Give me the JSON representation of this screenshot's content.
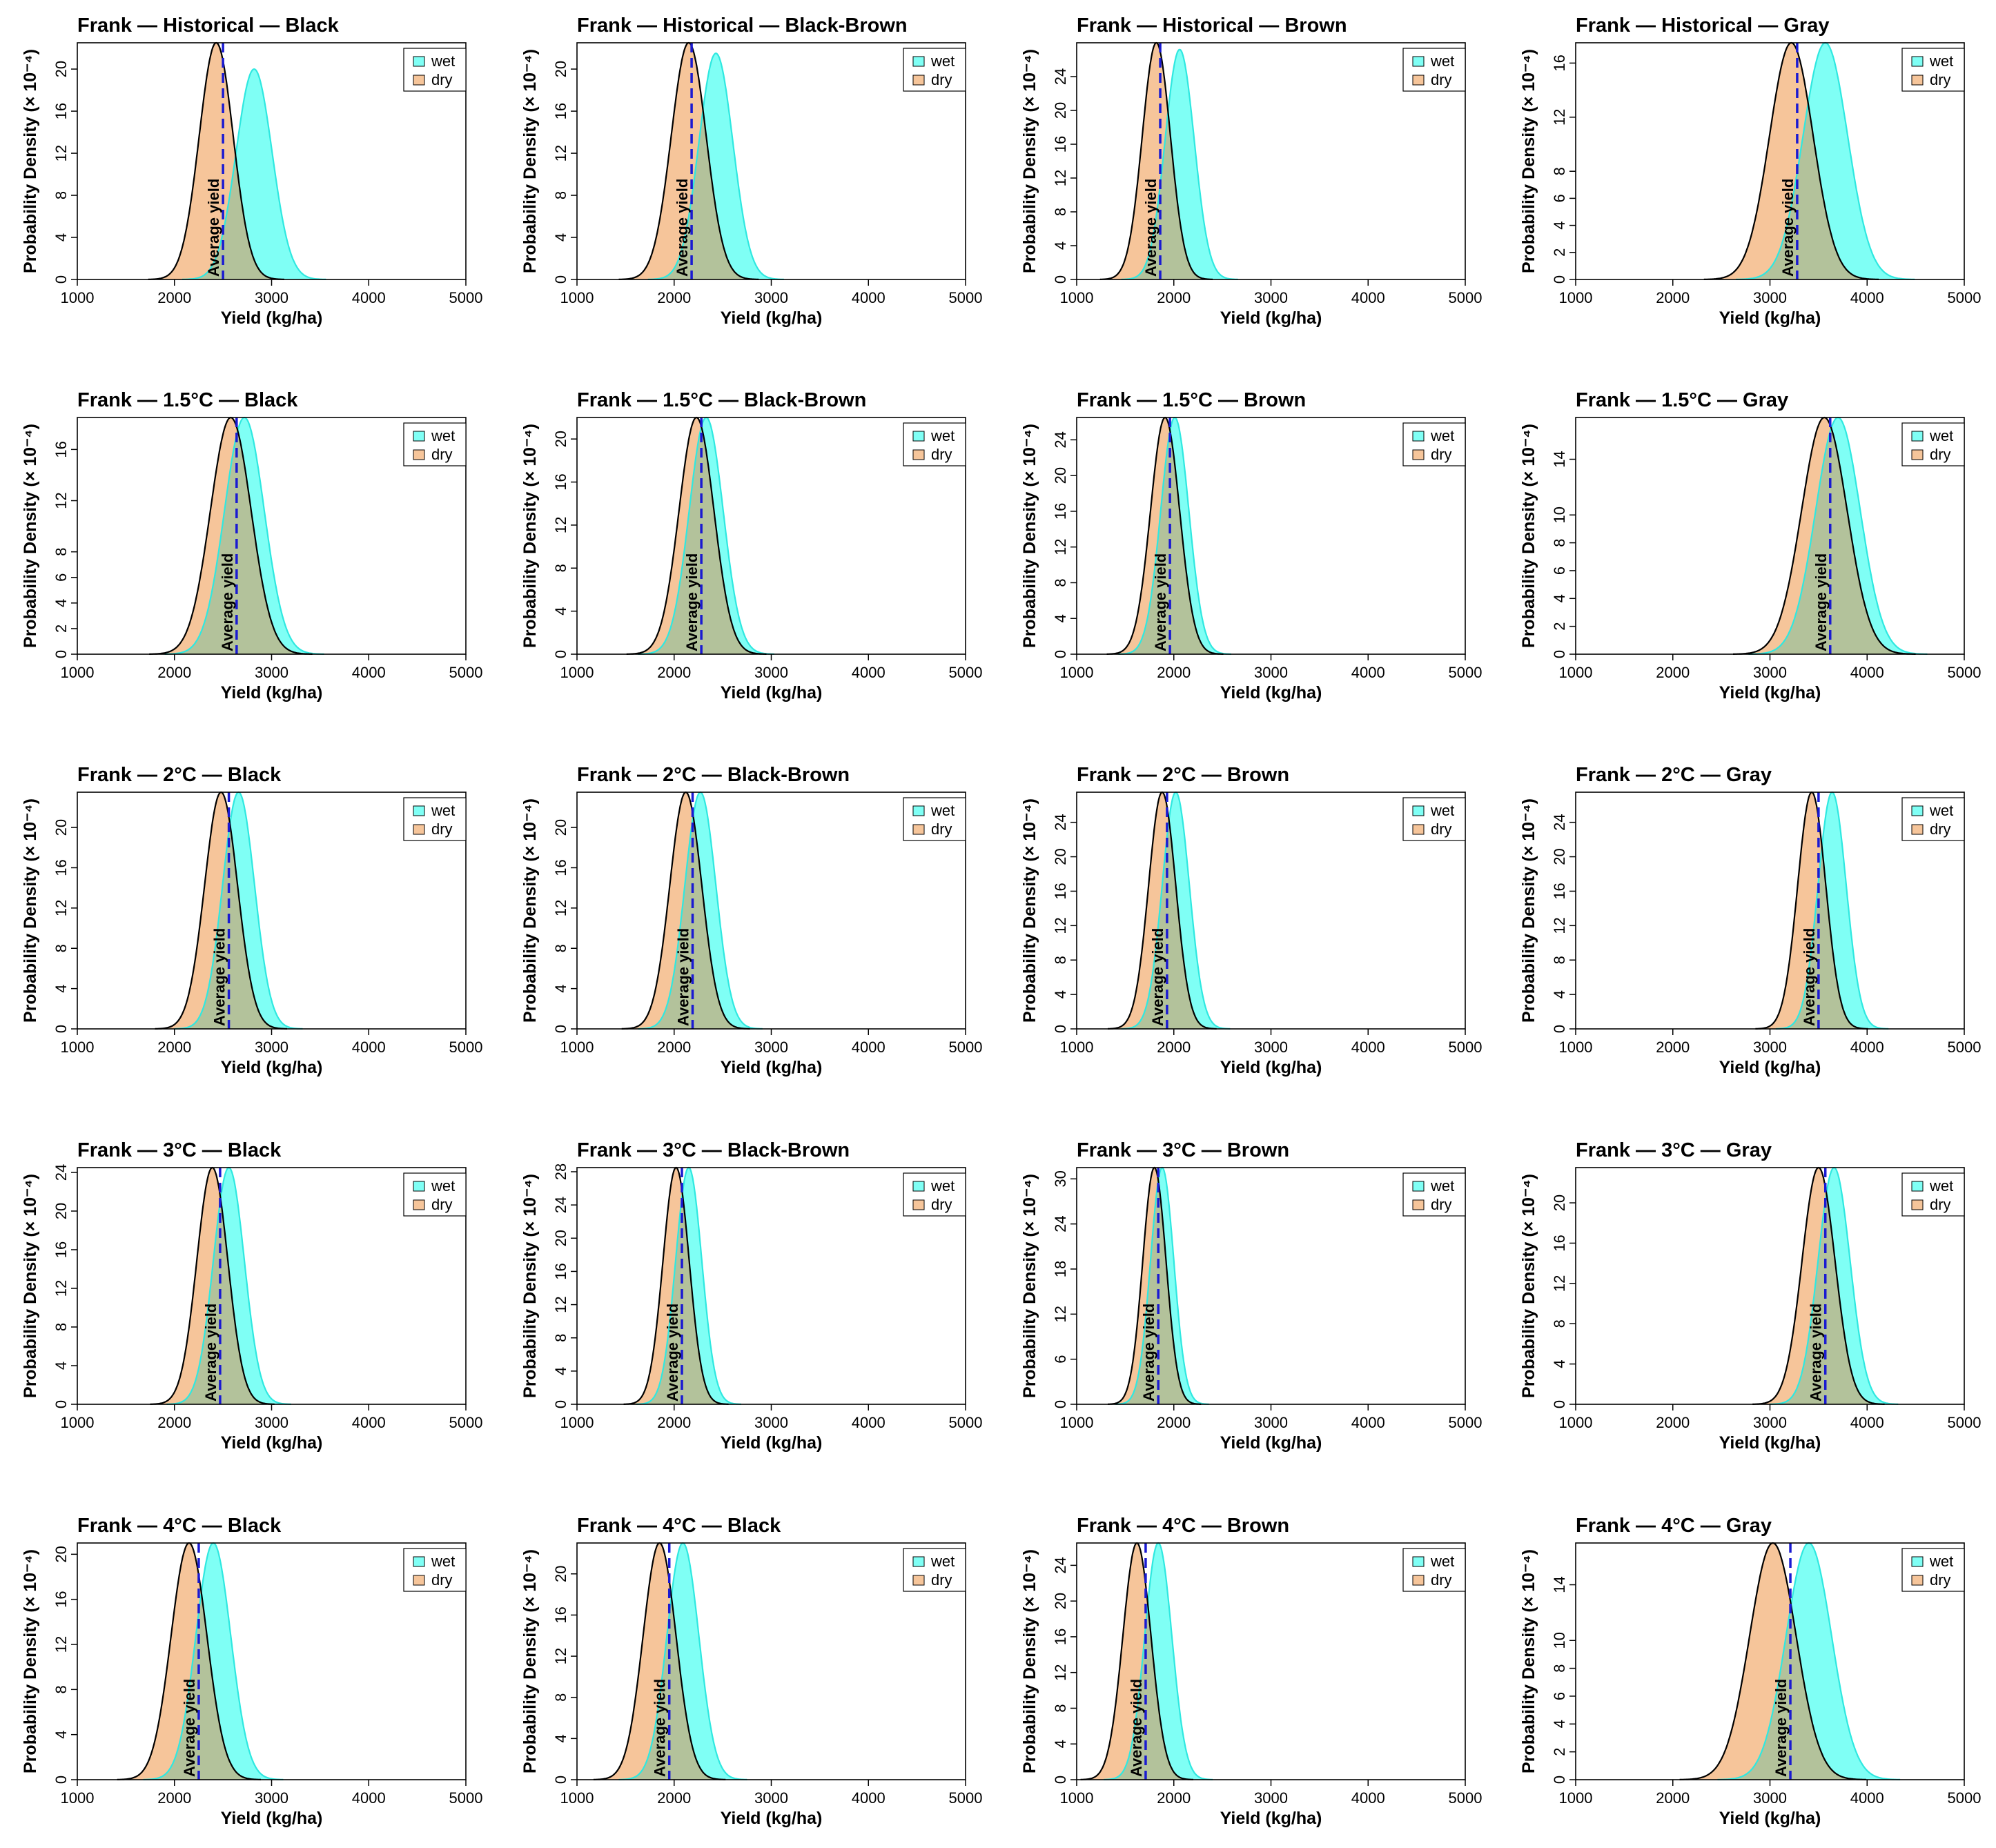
{
  "figure": {
    "ylabel": "Probability Density (× 10⁻⁴)"
  },
  "colors": {
    "wet_fill": "#7FFFF5",
    "wet_line": "#2FE8E0",
    "dry_fill": "#F6C59A",
    "overlap_fill": "#B3C29B",
    "dry_line": "#000000",
    "avg_line": "#1A1AD2"
  },
  "chart_data": [
    {
      "type": "area",
      "title": "Frank — Historical — Black",
      "xlabel": "Yield (kg/ha)",
      "ylabel": "Probability Density (× 10⁻⁴)",
      "xlim": [
        1000,
        5000
      ],
      "x_ticks": [
        "1000",
        "2000",
        "3000",
        "4000",
        "5000"
      ],
      "ylim": [
        0,
        22.5
      ],
      "y_ticks": [
        0,
        4,
        8,
        12,
        16,
        20
      ],
      "legend": [
        "wet",
        "dry"
      ],
      "series": [
        {
          "name": "wet",
          "mean": 2820,
          "sd": 185,
          "peak": 20.0
        },
        {
          "name": "dry",
          "mean": 2430,
          "sd": 175,
          "peak": 22.5
        }
      ],
      "average_yield": 2500,
      "avg_label": "Average yield"
    },
    {
      "type": "area",
      "title": "Frank — Historical — Black-Brown",
      "xlabel": "Yield (kg/ha)",
      "ylabel": "Probability Density (× 10⁻⁴)",
      "xlim": [
        1000,
        5000
      ],
      "x_ticks": [
        "1000",
        "2000",
        "3000",
        "4000",
        "5000"
      ],
      "ylim": [
        0,
        22.5
      ],
      "y_ticks": [
        0,
        4,
        8,
        12,
        16,
        20
      ],
      "legend": [
        "wet",
        "dry"
      ],
      "series": [
        {
          "name": "wet",
          "mean": 2430,
          "sd": 175,
          "peak": 21.5
        },
        {
          "name": "dry",
          "mean": 2150,
          "sd": 180,
          "peak": 22.5
        }
      ],
      "average_yield": 2180,
      "avg_label": "Average yield"
    },
    {
      "type": "area",
      "title": "Frank — Historical — Brown",
      "xlabel": "Yield (kg/ha)",
      "ylabel": "Probability Density (× 10⁻⁴)",
      "xlim": [
        1000,
        5000
      ],
      "x_ticks": [
        "1000",
        "2000",
        "3000",
        "4000",
        "5000"
      ],
      "ylim": [
        0,
        28
      ],
      "y_ticks": [
        0,
        4,
        8,
        12,
        16,
        20,
        24
      ],
      "legend": [
        "wet",
        "dry"
      ],
      "series": [
        {
          "name": "wet",
          "mean": 2060,
          "sd": 150,
          "peak": 27.2
        },
        {
          "name": "dry",
          "mean": 1820,
          "sd": 145,
          "peak": 28
        }
      ],
      "average_yield": 1860,
      "avg_label": "Average yield"
    },
    {
      "type": "area",
      "title": "Frank — Historical — Gray",
      "xlabel": "Yield (kg/ha)",
      "ylabel": "Probability Density (× 10⁻⁴)",
      "xlim": [
        1000,
        5000
      ],
      "x_ticks": [
        "1000",
        "2000",
        "3000",
        "4000",
        "5000"
      ],
      "ylim": [
        0,
        17.5
      ],
      "y_ticks": [
        0,
        2,
        4,
        6,
        8,
        12,
        16
      ],
      "legend": [
        "wet",
        "dry"
      ],
      "series": [
        {
          "name": "wet",
          "mean": 3570,
          "sd": 230,
          "peak": 17.5
        },
        {
          "name": "dry",
          "mean": 3220,
          "sd": 225,
          "peak": 17.5
        }
      ],
      "average_yield": 3280,
      "avg_label": "Average yield"
    },
    {
      "type": "area",
      "title": "Frank — 1.5°C — Black",
      "xlabel": "Yield (kg/ha)",
      "ylabel": "Probability Density (× 10⁻⁴)",
      "xlim": [
        1000,
        5000
      ],
      "x_ticks": [
        "1000",
        "2000",
        "3000",
        "4000",
        "5000"
      ],
      "ylim": [
        0,
        18.5
      ],
      "y_ticks": [
        0,
        2,
        4,
        6,
        8,
        12,
        16
      ],
      "legend": [
        "wet",
        "dry"
      ],
      "series": [
        {
          "name": "wet",
          "mean": 2720,
          "sd": 205,
          "peak": 18.5
        },
        {
          "name": "dry",
          "mean": 2580,
          "sd": 210,
          "peak": 18.5
        }
      ],
      "average_yield": 2640,
      "avg_label": "Average yield"
    },
    {
      "type": "area",
      "title": "Frank — 1.5°C — Black-Brown",
      "xlabel": "Yield (kg/ha)",
      "ylabel": "Probability Density (× 10⁻⁴)",
      "xlim": [
        1000,
        5000
      ],
      "x_ticks": [
        "1000",
        "2000",
        "3000",
        "4000",
        "5000"
      ],
      "ylim": [
        0,
        22
      ],
      "y_ticks": [
        0,
        4,
        8,
        12,
        16,
        20
      ],
      "legend": [
        "wet",
        "dry"
      ],
      "series": [
        {
          "name": "wet",
          "mean": 2330,
          "sd": 175,
          "peak": 22
        },
        {
          "name": "dry",
          "mean": 2230,
          "sd": 180,
          "peak": 22
        }
      ],
      "average_yield": 2280,
      "avg_label": "Average yield"
    },
    {
      "type": "area",
      "title": "Frank — 1.5°C — Brown",
      "xlabel": "Yield (kg/ha)",
      "ylabel": "Probability Density (× 10⁻⁴)",
      "xlim": [
        1000,
        5000
      ],
      "x_ticks": [
        "1000",
        "2000",
        "3000",
        "4000",
        "5000"
      ],
      "ylim": [
        0,
        26.5
      ],
      "y_ticks": [
        0,
        4,
        8,
        12,
        16,
        20,
        24
      ],
      "legend": [
        "wet",
        "dry"
      ],
      "series": [
        {
          "name": "wet",
          "mean": 2010,
          "sd": 145,
          "peak": 26.5
        },
        {
          "name": "dry",
          "mean": 1910,
          "sd": 150,
          "peak": 26.5
        }
      ],
      "average_yield": 1960,
      "avg_label": "Average yield"
    },
    {
      "type": "area",
      "title": "Frank — 1.5°C — Gray",
      "xlabel": "Yield (kg/ha)",
      "ylabel": "Probability Density (× 10⁻⁴)",
      "xlim": [
        1000,
        5000
      ],
      "x_ticks": [
        "1000",
        "2000",
        "3000",
        "4000",
        "5000"
      ],
      "ylim": [
        0,
        17
      ],
      "y_ticks": [
        0,
        2,
        4,
        6,
        8,
        10,
        14
      ],
      "legend": [
        "wet",
        "dry"
      ],
      "series": [
        {
          "name": "wet",
          "mean": 3700,
          "sd": 230,
          "peak": 17
        },
        {
          "name": "dry",
          "mean": 3560,
          "sd": 235,
          "peak": 17
        }
      ],
      "average_yield": 3620,
      "avg_label": "Average yield"
    },
    {
      "type": "area",
      "title": "Frank — 2°C — Black",
      "xlabel": "Yield (kg/ha)",
      "ylabel": "Probability Density (× 10⁻⁴)",
      "xlim": [
        1000,
        5000
      ],
      "x_ticks": [
        "1000",
        "2000",
        "3000",
        "4000",
        "5000"
      ],
      "ylim": [
        0,
        23.5
      ],
      "y_ticks": [
        0,
        4,
        8,
        12,
        16,
        20
      ],
      "legend": [
        "wet",
        "dry"
      ],
      "series": [
        {
          "name": "wet",
          "mean": 2660,
          "sd": 165,
          "peak": 23.5
        },
        {
          "name": "dry",
          "mean": 2480,
          "sd": 170,
          "peak": 23.5
        }
      ],
      "average_yield": 2560,
      "avg_label": "Average yield"
    },
    {
      "type": "area",
      "title": "Frank — 2°C — Black-Brown",
      "xlabel": "Yield (kg/ha)",
      "ylabel": "Probability Density (× 10⁻⁴)",
      "xlim": [
        1000,
        5000
      ],
      "x_ticks": [
        "1000",
        "2000",
        "3000",
        "4000",
        "5000"
      ],
      "ylim": [
        0,
        23.5
      ],
      "y_ticks": [
        0,
        4,
        8,
        12,
        16,
        20
      ],
      "legend": [
        "wet",
        "dry"
      ],
      "series": [
        {
          "name": "wet",
          "mean": 2270,
          "sd": 160,
          "peak": 23.5
        },
        {
          "name": "dry",
          "mean": 2120,
          "sd": 165,
          "peak": 23.5
        }
      ],
      "average_yield": 2190,
      "avg_label": "Average yield"
    },
    {
      "type": "area",
      "title": "Frank — 2°C — Brown",
      "xlabel": "Yield (kg/ha)",
      "ylabel": "Probability Density (× 10⁻⁴)",
      "xlim": [
        1000,
        5000
      ],
      "x_ticks": [
        "1000",
        "2000",
        "3000",
        "4000",
        "5000"
      ],
      "ylim": [
        0,
        27.5
      ],
      "y_ticks": [
        0,
        4,
        8,
        12,
        16,
        20,
        24
      ],
      "legend": [
        "wet",
        "dry"
      ],
      "series": [
        {
          "name": "wet",
          "mean": 2020,
          "sd": 140,
          "peak": 27.5
        },
        {
          "name": "dry",
          "mean": 1880,
          "sd": 140,
          "peak": 27.5
        }
      ],
      "average_yield": 1930,
      "avg_label": "Average yield"
    },
    {
      "type": "area",
      "title": "Frank — 2°C — Gray",
      "xlabel": "Yield (kg/ha)",
      "ylabel": "Probability Density (× 10⁻⁴)",
      "xlim": [
        1000,
        5000
      ],
      "x_ticks": [
        "1000",
        "2000",
        "3000",
        "4000",
        "5000"
      ],
      "ylim": [
        0,
        27.5
      ],
      "y_ticks": [
        0,
        4,
        8,
        12,
        16,
        20,
        24
      ],
      "legend": [
        "wet",
        "dry"
      ],
      "series": [
        {
          "name": "wet",
          "mean": 3640,
          "sd": 145,
          "peak": 27.5
        },
        {
          "name": "dry",
          "mean": 3430,
          "sd": 145,
          "peak": 27.5
        }
      ],
      "average_yield": 3500,
      "avg_label": "Average yield"
    },
    {
      "type": "area",
      "title": "Frank — 3°C — Black",
      "xlabel": "Yield (kg/ha)",
      "ylabel": "Probability Density (× 10⁻⁴)",
      "xlim": [
        1000,
        5000
      ],
      "x_ticks": [
        "1000",
        "2000",
        "3000",
        "4000",
        "5000"
      ],
      "ylim": [
        0,
        24.5
      ],
      "y_ticks": [
        0,
        4,
        8,
        12,
        16,
        20,
        24
      ],
      "legend": [
        "wet",
        "dry"
      ],
      "series": [
        {
          "name": "wet",
          "mean": 2560,
          "sd": 160,
          "peak": 24.5
        },
        {
          "name": "dry",
          "mean": 2390,
          "sd": 160,
          "peak": 24.5
        }
      ],
      "average_yield": 2470,
      "avg_label": "Average yield"
    },
    {
      "type": "area",
      "title": "Frank — 3°C — Black-Brown",
      "xlabel": "Yield (kg/ha)",
      "ylabel": "Probability Density (× 10⁻⁴)",
      "xlim": [
        1000,
        5000
      ],
      "x_ticks": [
        "1000",
        "2000",
        "3000",
        "4000",
        "5000"
      ],
      "ylim": [
        0,
        28.5
      ],
      "y_ticks": [
        0,
        4,
        8,
        12,
        16,
        20,
        24,
        28
      ],
      "legend": [
        "wet",
        "dry"
      ],
      "series": [
        {
          "name": "wet",
          "mean": 2150,
          "sd": 135,
          "peak": 28.5
        },
        {
          "name": "dry",
          "mean": 2020,
          "sd": 135,
          "peak": 28.5
        }
      ],
      "average_yield": 2080,
      "avg_label": "Average yield"
    },
    {
      "type": "area",
      "title": "Frank — 3°C — Brown",
      "xlabel": "Yield (kg/ha)",
      "ylabel": "Probability Density (× 10⁻⁴)",
      "xlim": [
        1000,
        5000
      ],
      "x_ticks": [
        "1000",
        "2000",
        "3000",
        "4000",
        "5000"
      ],
      "ylim": [
        0,
        31.5
      ],
      "y_ticks": [
        0,
        6,
        12,
        18,
        24,
        30
      ],
      "legend": [
        "wet",
        "dry"
      ],
      "series": [
        {
          "name": "wet",
          "mean": 1880,
          "sd": 120,
          "peak": 31.5
        },
        {
          "name": "dry",
          "mean": 1800,
          "sd": 120,
          "peak": 31.5
        }
      ],
      "average_yield": 1840,
      "avg_label": "Average yield"
    },
    {
      "type": "area",
      "title": "Frank — 3°C — Gray",
      "xlabel": "Yield (kg/ha)",
      "ylabel": "Probability Density (× 10⁻⁴)",
      "xlim": [
        1000,
        5000
      ],
      "x_ticks": [
        "1000",
        "2000",
        "3000",
        "4000",
        "5000"
      ],
      "ylim": [
        0,
        23.5
      ],
      "y_ticks": [
        0,
        4,
        8,
        12,
        16,
        20
      ],
      "legend": [
        "wet",
        "dry"
      ],
      "series": [
        {
          "name": "wet",
          "mean": 3660,
          "sd": 165,
          "peak": 23.5
        },
        {
          "name": "dry",
          "mean": 3500,
          "sd": 170,
          "peak": 23.5
        }
      ],
      "average_yield": 3570,
      "avg_label": "Average yield"
    },
    {
      "type": "area",
      "title": "Frank — 4°C — Black",
      "xlabel": "Yield (kg/ha)",
      "ylabel": "Probability Density (× 10⁻⁴)",
      "xlim": [
        1000,
        5000
      ],
      "x_ticks": [
        "1000",
        "2000",
        "3000",
        "4000",
        "5000"
      ],
      "ylim": [
        0,
        21
      ],
      "y_ticks": [
        0,
        4,
        8,
        12,
        16,
        20
      ],
      "legend": [
        "wet",
        "dry"
      ],
      "series": [
        {
          "name": "wet",
          "mean": 2400,
          "sd": 180,
          "peak": 21
        },
        {
          "name": "dry",
          "mean": 2150,
          "sd": 185,
          "peak": 21
        }
      ],
      "average_yield": 2250,
      "avg_label": "Average yield"
    },
    {
      "type": "area",
      "title": "Frank — 4°C — Black",
      "xlabel": "Yield (kg/ha)",
      "ylabel": "Probability Density (× 10⁻⁴)",
      "xlim": [
        1000,
        5000
      ],
      "x_ticks": [
        "1000",
        "2000",
        "3000",
        "4000",
        "5000"
      ],
      "ylim": [
        0,
        23
      ],
      "y_ticks": [
        0,
        4,
        8,
        12,
        16,
        20
      ],
      "legend": [
        "wet",
        "dry"
      ],
      "series": [
        {
          "name": "wet",
          "mean": 2090,
          "sd": 165,
          "peak": 23
        },
        {
          "name": "dry",
          "mean": 1850,
          "sd": 170,
          "peak": 23
        }
      ],
      "average_yield": 1950,
      "avg_label": "Average yield"
    },
    {
      "type": "area",
      "title": "Frank — 4°C — Brown",
      "xlabel": "Yield (kg/ha)",
      "ylabel": "Probability Density (× 10⁻⁴)",
      "xlim": [
        1000,
        5000
      ],
      "x_ticks": [
        "1000",
        "2000",
        "3000",
        "4000",
        "5000"
      ],
      "ylim": [
        0,
        26.5
      ],
      "y_ticks": [
        0,
        4,
        8,
        12,
        16,
        20,
        24
      ],
      "legend": [
        "wet",
        "dry"
      ],
      "series": [
        {
          "name": "wet",
          "mean": 1840,
          "sd": 140,
          "peak": 26.5
        },
        {
          "name": "dry",
          "mean": 1620,
          "sd": 145,
          "peak": 26.5
        }
      ],
      "average_yield": 1710,
      "avg_label": "Average yield"
    },
    {
      "type": "area",
      "title": "Frank — 4°C — Gray",
      "xlabel": "Yield (kg/ha)",
      "ylabel": "Probability Density (× 10⁻⁴)",
      "xlim": [
        1000,
        5000
      ],
      "x_ticks": [
        "1000",
        "2000",
        "3000",
        "4000",
        "5000"
      ],
      "ylim": [
        0,
        17
      ],
      "y_ticks": [
        0,
        2,
        4,
        6,
        8,
        10,
        14
      ],
      "legend": [
        "wet",
        "dry"
      ],
      "series": [
        {
          "name": "wet",
          "mean": 3400,
          "sd": 235,
          "peak": 17
        },
        {
          "name": "dry",
          "mean": 3030,
          "sd": 240,
          "peak": 17
        }
      ],
      "average_yield": 3210,
      "avg_label": "Average yield"
    }
  ]
}
